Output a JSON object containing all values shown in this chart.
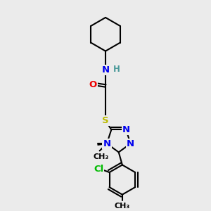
{
  "bg_color": "#ebebeb",
  "atom_colors": {
    "C": "#000000",
    "N": "#0000ee",
    "O": "#ee0000",
    "S": "#bbbb00",
    "Cl": "#00bb00",
    "H": "#4a9999"
  },
  "bond_color": "#000000",
  "bond_width": 1.5,
  "font_size_atom": 9.5,
  "font_size_label": 8.5
}
